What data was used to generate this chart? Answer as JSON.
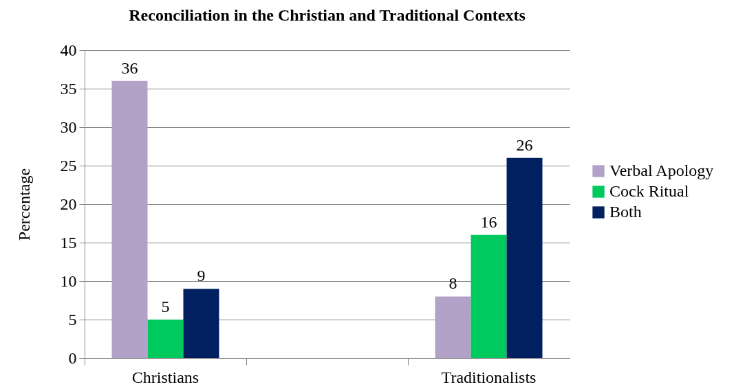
{
  "chart_data": {
    "type": "bar",
    "title": "Reconciliation in the Christian and Traditional Contexts",
    "ylabel": "Percentage",
    "categories": [
      "Christians",
      null,
      "Traditionalists"
    ],
    "series": [
      {
        "name": "Verbal Apology",
        "color": "#b2a2c8",
        "values": [
          36,
          null,
          8
        ]
      },
      {
        "name": "Cock Ritual",
        "color": "#00c95d",
        "values": [
          5,
          null,
          16
        ]
      },
      {
        "name": "Both",
        "color": "#002060",
        "values": [
          9,
          null,
          26
        ]
      }
    ],
    "ylim": [
      0,
      40
    ],
    "yticks": [
      0,
      5,
      10,
      15,
      20,
      25,
      30,
      35,
      40
    ],
    "grid": "y",
    "legend": "right",
    "data_labels": true
  }
}
